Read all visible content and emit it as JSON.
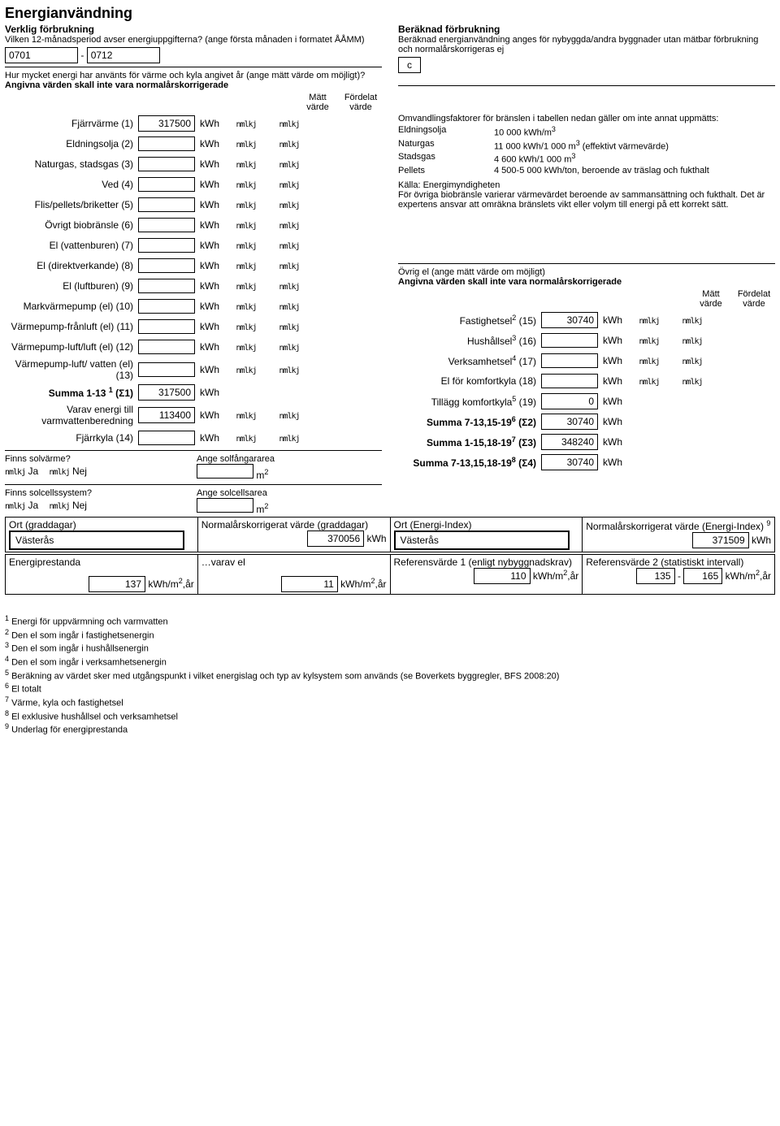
{
  "title": "Energianvändning",
  "left": {
    "verklig_heading": "Verklig förbrukning",
    "period_q": "Vilken 12-månadsperiod avser energiuppgifterna? (ange första månaden i formatet ÅÅMM)",
    "period_from": "0701",
    "period_sep": "-",
    "period_to": "0712",
    "usage_q": "Hur mycket energi har använts för värme och kyla angivet år (ange mätt värde om möjligt)?",
    "norm_note": "Angivna värden skall inte vara normalårskorrigerade",
    "col_matt": "Mätt värde",
    "col_fordelat": "Fördelat värde",
    "unit_kwh": "kWh",
    "rows": [
      {
        "label": "Fjärrvärme (1)",
        "value": "317500"
      },
      {
        "label": "Eldningsolja (2)",
        "value": ""
      },
      {
        "label": "Naturgas, stadsgas (3)",
        "value": ""
      },
      {
        "label": "Ved (4)",
        "value": ""
      },
      {
        "label": "Flis/pellets/briketter (5)",
        "value": ""
      },
      {
        "label": "Övrigt biobränsle (6)",
        "value": ""
      },
      {
        "label": "El (vattenburen) (7)",
        "value": ""
      },
      {
        "label": "El (direktverkande) (8)",
        "value": ""
      },
      {
        "label": "El (luftburen) (9)",
        "value": ""
      },
      {
        "label": "Markvärmepump (el) (10)",
        "value": ""
      },
      {
        "label": "Värmepump-frånluft (el) (11)",
        "value": ""
      },
      {
        "label": "Värmepump-luft/luft (el) (12)",
        "value": ""
      },
      {
        "label": "Värmepump-luft/ vatten (el) (13)",
        "value": ""
      }
    ],
    "summa_label": "Summa 1-13 ",
    "summa_sup": "1",
    "summa_sigma": " (Σ1)",
    "summa_value": "317500",
    "varav_label": "Varav energi till varmvattenberedning",
    "varav_value": "113400",
    "fjarrkyla_label": "Fjärrkyla (14)",
    "fjarrkyla_value": "",
    "solv_q": "Finns solvärme?",
    "solv_area_label": "Ange solfångararea",
    "solcell_q": "Finns solcellssystem?",
    "solcell_area_label": "Ange solcellsarea",
    "m2": "m",
    "ja": "Ja",
    "nej": "Nej"
  },
  "right": {
    "beraknad_heading": "Beräknad förbrukning",
    "beraknad_text": "Beräknad energianvändning anges för nybyggda/andra byggnader utan mätbar förbrukning och normalårskorrigeras ej",
    "conv_intro": "Omvandlingsfaktorer för bränslen i tabellen nedan gäller om inte annat uppmätts:",
    "conv": [
      {
        "name": "Eldningsolja",
        "val": "10 000 kWh/m",
        "sup": "3",
        "tail": ""
      },
      {
        "name": "Naturgas",
        "val": "11 000 kWh/1 000 m",
        "sup": "3",
        "tail": " (effektivt värmevärde)"
      },
      {
        "name": "Stadsgas",
        "val": "4 600 kWh/1 000 m",
        "sup": "3",
        "tail": ""
      },
      {
        "name": "Pellets",
        "val": "4 500-5 000 kWh/ton, beroende av träslag och fukthalt",
        "sup": "",
        "tail": ""
      }
    ],
    "kalla": "Källa: Energimyndigheten",
    "ovr_bio": "För övriga biobränsle varierar värmevärdet beroende av sammansättning och fukthalt. Det är expertens ansvar att omräkna bränslets vikt eller volym till energi på ett korrekt sätt.",
    "ovr_el_heading": "Övrig el (ange mätt värde om möjligt)",
    "ovr_el_norm": "Angivna värden skall inte vara normalårskorrigerade",
    "col_matt": "Mätt värde",
    "col_fordelat": "Fördelat värde",
    "rows2": [
      {
        "label": "Fastighetsel",
        "sup": "2",
        "num": "(15)",
        "value": "30740"
      },
      {
        "label": "Hushållsel",
        "sup": "3",
        "num": "(16)",
        "value": ""
      },
      {
        "label": "Verksamhetsel",
        "sup": "4",
        "num": "(17)",
        "value": ""
      },
      {
        "label": "El för komfortkyla (18)",
        "sup": "",
        "num": "",
        "value": ""
      }
    ],
    "tillagg_label": "Tillägg komfortkyla",
    "tillagg_sup": "5",
    "tillagg_num": " (19)",
    "tillagg_value": "0",
    "s2_label": "Summa 7-13,15-19",
    "s2_sup": "6",
    "s2_sigma": " (Σ2)",
    "s2_value": "30740",
    "s3_label": "Summa 1-15,18-19",
    "s3_sup": "7",
    "s3_sigma": " (Σ3)",
    "s3_value": "348240",
    "s4_label": "Summa 7-13,15,18-19",
    "s4_sup": "8",
    "s4_sigma": " (Σ4)",
    "s4_value": "30740"
  },
  "bottom": {
    "ort_gd_label": "Ort (graddagar)",
    "ort_gd_value": "Västerås",
    "norm_gd_label": "Normalårskorrigerat värde (graddagar)",
    "norm_gd_value": "370056",
    "ort_ei_label": "Ort (Energi-Index)",
    "ort_ei_value": "Västerås",
    "norm_ei_label": "Normalårskorrigerat värde (Energi-Index) ",
    "norm_ei_sup": "9",
    "norm_ei_value": "371509",
    "unit_kwh": "kWh",
    "ep_label": "Energiprestanda",
    "ep_value": "137",
    "varav_el_label": "…varav el",
    "varav_el_value": "11",
    "ref1_label": "Referensvärde 1 (enligt nybyggnadskrav)",
    "ref1_value": "110",
    "ref2_label": "Referensvärde 2 (statistiskt intervall)",
    "ref2_lo": "135",
    "ref2_sep": "-",
    "ref2_hi": "165",
    "unit": "kWh/m",
    "unit_sup": "2",
    "unit_tail": ",år"
  },
  "footnotes": [
    {
      "n": "1",
      "t": "Energi för uppvärmning och varmvatten"
    },
    {
      "n": "2",
      "t": "Den el som ingår i fastighetsenergin"
    },
    {
      "n": "3",
      "t": "Den el som ingår i hushållsenergin"
    },
    {
      "n": "4",
      "t": "Den el som ingår i verksamhetsenergin"
    },
    {
      "n": "5",
      "t": "Beräkning av värdet sker med utgångspunkt i vilket energislag och typ av kylsystem som används (se Boverkets byggregler, BFS 2008:20)"
    },
    {
      "n": "6",
      "t": "El totalt"
    },
    {
      "n": "7",
      "t": "Värme, kyla och fastighetsel"
    },
    {
      "n": "8",
      "t": "El exklusive hushållsel och verksamhetsel"
    },
    {
      "n": "9",
      "t": "Underlag för energiprestanda"
    }
  ]
}
